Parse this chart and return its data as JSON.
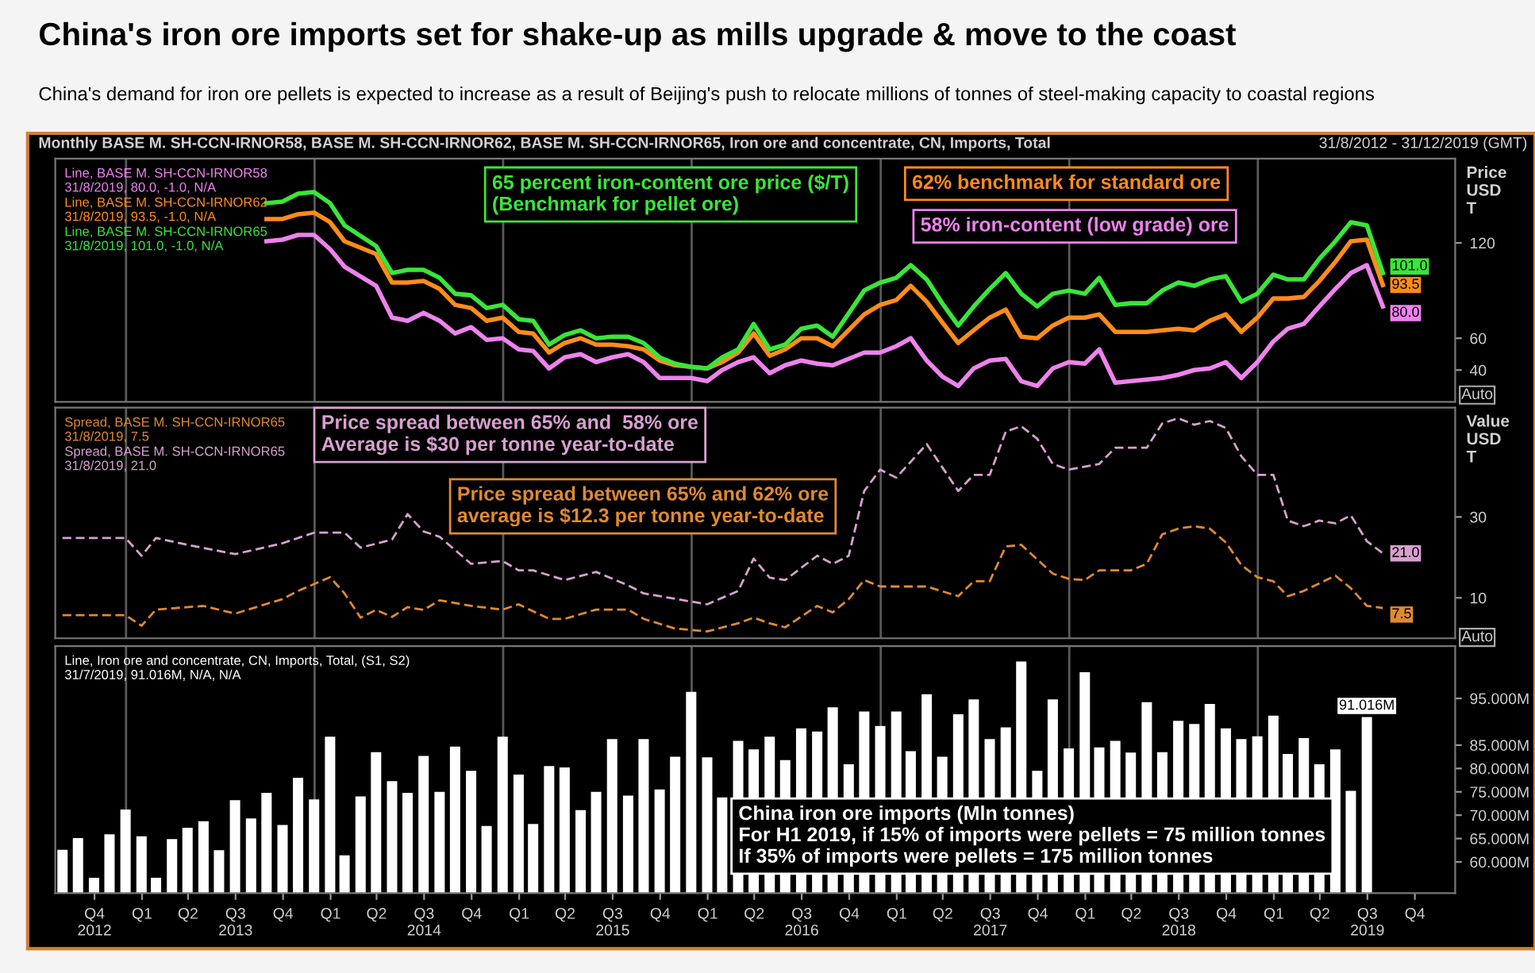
{
  "chart_data": [
    {
      "type": "line",
      "title": "China's iron ore imports set for shake-up as mills upgrade & move to the coast",
      "subtitle": "China's demand for iron ore pellets is expected to increase as a result of Beijing's push to relocate millions of tonnes of steel-making capacity to coastal regions",
      "ylabel": "Price\nUSD\nT",
      "legend": "top left",
      "tick_labels": "y",
      "line_style": "solid",
      "xlim": [
        "2012-08-17",
        "2020-01-18"
      ],
      "ylim": [
        20,
        173
      ],
      "yticks": [
        40,
        60,
        120
      ],
      "x": [
        "2013-09-30",
        "2013-10-31",
        "2013-11-30",
        "2013-12-31",
        "2014-01-31",
        "2014-02-28",
        "2014-04-30",
        "2014-05-31",
        "2014-06-30",
        "2014-07-31",
        "2014-08-31",
        "2014-09-30",
        "2014-10-31",
        "2014-11-30",
        "2014-12-31",
        "2015-01-31",
        "2015-02-28",
        "2015-03-31",
        "2015-04-30",
        "2015-05-31",
        "2015-06-30",
        "2015-07-31",
        "2015-08-31",
        "2015-09-30",
        "2015-10-31",
        "2015-11-30",
        "2015-12-31",
        "2016-01-31",
        "2016-02-29",
        "2016-03-31",
        "2016-04-30",
        "2016-05-31",
        "2016-06-30",
        "2016-07-31",
        "2016-08-31",
        "2016-09-30",
        "2016-11-30",
        "2016-12-31",
        "2017-01-31",
        "2017-02-28",
        "2017-03-31",
        "2017-04-30",
        "2017-05-31",
        "2017-06-30",
        "2017-07-31",
        "2017-08-31",
        "2017-09-30",
        "2017-10-31",
        "2017-11-30",
        "2017-12-31",
        "2018-01-31",
        "2018-02-28",
        "2018-03-31",
        "2018-04-30",
        "2018-05-31",
        "2018-06-30",
        "2018-07-31",
        "2018-08-31",
        "2018-09-30",
        "2018-10-31",
        "2018-11-30",
        "2018-12-31",
        "2019-01-31",
        "2019-02-28",
        "2019-03-31",
        "2019-04-30",
        "2019-05-31",
        "2019-06-30",
        "2019-07-31",
        "2019-08-31"
      ],
      "series": [
        {
          "name": "Line, BASE M. SH-CCN-IRNOR58\n31/8/2019, 80.0, -1.0, N/A",
          "color": "#ee82ee",
          "values": [
            121,
            122,
            125,
            125,
            116,
            105,
            93,
            73,
            71,
            76,
            71,
            63,
            67,
            59,
            60,
            53,
            52,
            41,
            48,
            50,
            45,
            48,
            50,
            45,
            35,
            35,
            35,
            33,
            40,
            45,
            48,
            38,
            43,
            46,
            44,
            43,
            51,
            51,
            55,
            60,
            46,
            36,
            30,
            41,
            46,
            47,
            33,
            30,
            41,
            45,
            44,
            53,
            32,
            33,
            34,
            35,
            37,
            40,
            41,
            45,
            35,
            45,
            58,
            66,
            69,
            80,
            91,
            101,
            106,
            80
          ],
          "value_labels": [
            null,
            null,
            null,
            null,
            null,
            null,
            null,
            null,
            null,
            null,
            null,
            null,
            null,
            null,
            null,
            null,
            null,
            null,
            null,
            null,
            null,
            null,
            null,
            null,
            null,
            null,
            null,
            null,
            null,
            null,
            null,
            null,
            null,
            null,
            null,
            null,
            null,
            null,
            null,
            null,
            null,
            null,
            null,
            null,
            null,
            null,
            null,
            null,
            null,
            null,
            null,
            null,
            null,
            null,
            null,
            null,
            null,
            null,
            null,
            null,
            null,
            null,
            null,
            null,
            null,
            null,
            null,
            null,
            null,
            "80.0"
          ]
        },
        {
          "name": "Line, BASE M. SH-CCN-IRNOR62\n31/8/2019, 93.5, -1.0, N/A",
          "color": "#ff8c1a",
          "values": [
            135,
            135,
            138,
            139,
            133,
            121,
            113,
            95,
            95,
            96,
            91,
            81,
            79,
            71,
            73,
            64,
            63,
            51,
            57,
            60,
            56,
            56,
            55,
            53,
            46,
            43,
            42,
            41,
            45,
            51,
            63,
            49,
            53,
            60,
            60,
            55,
            75,
            81,
            84,
            93,
            83,
            70,
            57,
            65,
            73,
            78,
            61,
            60,
            68,
            73,
            73,
            75,
            64,
            64,
            64,
            65,
            66,
            65,
            71,
            75,
            64,
            73,
            85,
            85,
            86,
            96,
            108,
            121,
            122,
            93.5
          ],
          "value_labels": [
            null,
            null,
            null,
            null,
            null,
            null,
            null,
            null,
            null,
            null,
            null,
            null,
            null,
            null,
            null,
            null,
            null,
            null,
            null,
            null,
            null,
            null,
            null,
            null,
            null,
            null,
            null,
            null,
            null,
            null,
            null,
            null,
            null,
            null,
            null,
            null,
            null,
            null,
            null,
            null,
            null,
            null,
            null,
            null,
            null,
            null,
            null,
            null,
            null,
            null,
            null,
            null,
            null,
            null,
            null,
            null,
            null,
            null,
            null,
            null,
            null,
            null,
            null,
            null,
            null,
            null,
            null,
            null,
            null,
            "93.5"
          ]
        },
        {
          "name": "Line, BASE M. SH-CCN-IRNOR65\n31/8/2019, 101.0, -1.0, N/A",
          "color": "#39e639",
          "values": [
            145,
            146,
            151,
            152,
            145,
            131,
            118,
            101,
            103,
            103,
            98,
            88,
            87,
            79,
            81,
            72,
            71,
            56,
            62,
            65,
            60,
            61,
            61,
            57,
            48,
            44,
            42,
            41,
            48,
            53,
            69,
            53,
            56,
            66,
            68,
            61,
            90,
            95,
            98,
            106,
            97,
            82,
            68,
            80,
            91,
            101,
            88,
            80,
            88,
            90,
            88,
            98,
            81,
            82,
            82,
            90,
            95,
            93,
            97,
            99,
            83,
            88,
            100,
            97,
            97,
            110,
            121,
            133,
            131,
            101
          ],
          "value_labels": [
            null,
            null,
            null,
            null,
            null,
            null,
            null,
            null,
            null,
            null,
            null,
            null,
            null,
            null,
            null,
            null,
            null,
            null,
            null,
            null,
            null,
            null,
            null,
            null,
            null,
            null,
            null,
            null,
            null,
            null,
            null,
            null,
            null,
            null,
            null,
            null,
            null,
            null,
            null,
            null,
            null,
            null,
            null,
            null,
            null,
            null,
            null,
            null,
            null,
            null,
            null,
            null,
            null,
            null,
            null,
            null,
            null,
            null,
            null,
            null,
            null,
            null,
            null,
            null,
            null,
            null,
            null,
            null,
            null,
            "101.0"
          ]
        }
      ],
      "ref_lines": [
        {
          "axis": "x",
          "value": "2013-01-01",
          "color": "#5a5a5a"
        },
        {
          "axis": "x",
          "value": "2014-01-01",
          "color": "#5a5a5a"
        },
        {
          "axis": "x",
          "value": "2015-01-01",
          "color": "#5a5a5a"
        },
        {
          "axis": "x",
          "value": "2016-01-01",
          "color": "#5a5a5a"
        },
        {
          "axis": "x",
          "value": "2017-01-01",
          "color": "#5a5a5a"
        },
        {
          "axis": "x",
          "value": "2018-01-01",
          "color": "#5a5a5a"
        },
        {
          "axis": "x",
          "value": "2019-01-01",
          "color": "#5a5a5a"
        }
      ],
      "annotations": [
        "58% iron-content (low grade) ore",
        "62% benchmark for standard ore",
        "65 percent iron-content ore price ($/T)\n(Benchmark for pellet ore)",
        "Monthly BASE M. SH-CCN-IRNOR58, BASE M. SH-CCN-IRNOR62, BASE M. SH-CCN-IRNOR65, Iron ore and concentrate, CN, Imports, Total",
        "31/8/2012 - 31/12/2019 (GMT)",
        "Auto"
      ]
    },
    {
      "type": "line",
      "ylabel": "Value\nUSD\nT",
      "legend": "top left",
      "tick_labels": "y",
      "line_style": "dashed",
      "xlim": [
        "2012-08-17",
        "2020-01-18"
      ],
      "ylim": [
        0,
        57
      ],
      "yticks": [
        10,
        30
      ],
      "series": [
        {
          "name": "Spread, BASE M. SH-CCN-IRNOR65\n31/8/2019, 7.5",
          "color": "#e08a30",
          "x": [
            "2012-08-31",
            "2012-12-31",
            "2013-01-31",
            "2013-02-28",
            "2013-05-31",
            "2013-07-31",
            "2013-10-31",
            "2013-11-30",
            "2014-01-31",
            "2014-02-28",
            "2014-03-31",
            "2014-04-30",
            "2014-05-31",
            "2014-06-30",
            "2014-07-31",
            "2014-08-31",
            "2014-10-31",
            "2014-12-31",
            "2015-01-31",
            "2015-03-31",
            "2015-04-30",
            "2015-06-30",
            "2015-08-31",
            "2015-09-30",
            "2015-11-30",
            "2016-01-31",
            "2016-03-31",
            "2016-04-30",
            "2016-05-31",
            "2016-06-30",
            "2016-08-31",
            "2016-09-30",
            "2016-10-31",
            "2016-11-30",
            "2016-12-31",
            "2017-03-31",
            "2017-05-31",
            "2017-06-30",
            "2017-07-31",
            "2017-08-31",
            "2017-09-30",
            "2017-11-30",
            "2017-12-31",
            "2018-01-31",
            "2018-02-28",
            "2018-04-30",
            "2018-05-31",
            "2018-06-30",
            "2018-07-31",
            "2018-08-31",
            "2018-09-30",
            "2018-10-31",
            "2018-11-30",
            "2018-12-31",
            "2019-01-31",
            "2019-02-28",
            "2019-03-31",
            "2019-05-31",
            "2019-06-30",
            "2019-07-31",
            "2019-08-31"
          ],
          "values": [
            5.7,
            5.7,
            3.1,
            7.1,
            8.0,
            6.1,
            9.7,
            11.7,
            15.1,
            11.1,
            5.1,
            7.0,
            5.3,
            7.7,
            7.0,
            9.4,
            8.0,
            7.1,
            8.4,
            4.8,
            4.8,
            7.1,
            7.1,
            4.8,
            2.4,
            1.7,
            3.7,
            5.1,
            3.7,
            2.7,
            8.0,
            6.4,
            9.7,
            14.4,
            12.8,
            12.8,
            10.4,
            14.1,
            14.1,
            22.7,
            23.1,
            16.0,
            14.7,
            14.4,
            16.8,
            16.8,
            18.4,
            25.7,
            27.1,
            27.7,
            27.1,
            23.7,
            18.1,
            15.1,
            14.1,
            10.4,
            11.7,
            15.5,
            12.4,
            8.0,
            7.5
          ],
          "value_labels": [
            null,
            null,
            null,
            null,
            null,
            null,
            null,
            null,
            null,
            null,
            null,
            null,
            null,
            null,
            null,
            null,
            null,
            null,
            null,
            null,
            null,
            null,
            null,
            null,
            null,
            null,
            null,
            null,
            null,
            null,
            null,
            null,
            null,
            null,
            null,
            null,
            null,
            null,
            null,
            null,
            null,
            null,
            null,
            null,
            null,
            null,
            null,
            null,
            null,
            null,
            null,
            null,
            null,
            null,
            null,
            null,
            null,
            null,
            null,
            null,
            "7.5"
          ]
        },
        {
          "name": "Spread, BASE M. SH-CCN-IRNOR65\n31/8/2019, 21.0",
          "color": "#d8a0d0",
          "x": [
            "2012-08-31",
            "2012-12-31",
            "2013-01-31",
            "2013-02-28",
            "2013-04-30",
            "2013-07-31",
            "2013-10-31",
            "2013-12-31",
            "2014-02-28",
            "2014-03-31",
            "2014-05-31",
            "2014-06-30",
            "2014-07-31",
            "2014-08-31",
            "2014-10-31",
            "2014-12-31",
            "2015-01-31",
            "2015-02-28",
            "2015-04-30",
            "2015-06-30",
            "2015-08-31",
            "2015-09-30",
            "2016-01-31",
            "2016-03-31",
            "2016-04-30",
            "2016-05-31",
            "2016-06-30",
            "2016-08-31",
            "2016-09-30",
            "2016-10-31",
            "2016-11-30",
            "2016-12-31",
            "2017-01-31",
            "2017-03-31",
            "2017-05-31",
            "2017-06-30",
            "2017-07-31",
            "2017-08-31",
            "2017-09-30",
            "2017-10-31",
            "2017-11-30",
            "2017-12-31",
            "2018-02-28",
            "2018-03-31",
            "2018-05-31",
            "2018-06-30",
            "2018-07-31",
            "2018-08-31",
            "2018-09-30",
            "2018-10-31",
            "2018-11-30",
            "2018-12-31",
            "2019-01-31",
            "2019-02-28",
            "2019-03-31",
            "2019-04-30",
            "2019-05-31",
            "2019-06-30",
            "2019-07-31",
            "2019-08-31"
          ],
          "values": [
            24.8,
            24.8,
            20.4,
            24.8,
            23.1,
            20.8,
            23.5,
            26.1,
            26.1,
            22.4,
            24.4,
            30.7,
            26.4,
            25.1,
            18.4,
            19.1,
            16.8,
            16.8,
            14.4,
            16.4,
            13.1,
            11.1,
            8.4,
            11.7,
            19.7,
            15.0,
            14.4,
            20.4,
            18.4,
            20.4,
            36.4,
            41.7,
            39.7,
            48.0,
            36.4,
            40.4,
            40.4,
            51.1,
            52.4,
            49.3,
            43.1,
            41.7,
            43.1,
            47.1,
            47.1,
            53.1,
            54.4,
            52.8,
            53.7,
            52.0,
            45.0,
            40.4,
            40.4,
            29.1,
            27.7,
            29.1,
            28.4,
            30.4,
            24.0,
            21.0
          ],
          "value_labels": [
            null,
            null,
            null,
            null,
            null,
            null,
            null,
            null,
            null,
            null,
            null,
            null,
            null,
            null,
            null,
            null,
            null,
            null,
            null,
            null,
            null,
            null,
            null,
            null,
            null,
            null,
            null,
            null,
            null,
            null,
            null,
            null,
            null,
            null,
            null,
            null,
            null,
            null,
            null,
            null,
            null,
            null,
            null,
            null,
            null,
            null,
            null,
            null,
            null,
            null,
            null,
            null,
            null,
            null,
            null,
            null,
            null,
            null,
            null,
            "21.0"
          ]
        }
      ],
      "ref_lines": [
        {
          "axis": "x",
          "value": "2013-01-01",
          "color": "#5a5a5a"
        },
        {
          "axis": "x",
          "value": "2014-01-01",
          "color": "#5a5a5a"
        },
        {
          "axis": "x",
          "value": "2015-01-01",
          "color": "#5a5a5a"
        },
        {
          "axis": "x",
          "value": "2016-01-01",
          "color": "#5a5a5a"
        },
        {
          "axis": "x",
          "value": "2017-01-01",
          "color": "#5a5a5a"
        },
        {
          "axis": "x",
          "value": "2018-01-01",
          "color": "#5a5a5a"
        },
        {
          "axis": "x",
          "value": "2019-01-01",
          "color": "#5a5a5a"
        }
      ],
      "annotations": [
        "Price spread between 65% and 62% ore\naverage is $12.3 per tonne year-to-date",
        "Price spread between 65% and  58% ore\nAverage is $30 per tonne year-to-date",
        "Auto"
      ]
    },
    {
      "type": "bar",
      "legend": "top left",
      "xlim": [
        "2012-08-17",
        "2020-01-18"
      ],
      "ylim": [
        53.3,
        106.2
      ],
      "yticks": [
        {
          "value": 60,
          "label": "60.000M"
        },
        {
          "value": 65,
          "label": "65.000M"
        },
        {
          "value": 70,
          "label": "70.000M"
        },
        {
          "value": 75,
          "label": "75.000M"
        },
        {
          "value": 80,
          "label": "80.000M"
        },
        {
          "value": 85,
          "label": "85.000M"
        },
        {
          "value": 95,
          "label": "95.000M"
        }
      ],
      "xticks": [
        {
          "value": "2012-11-01",
          "label": "Q4\n2012"
        },
        {
          "value": "2013-02-01",
          "label": "Q1"
        },
        {
          "value": "2013-05-01",
          "label": "Q2"
        },
        {
          "value": "2013-08-01",
          "label": "Q3\n2013"
        },
        {
          "value": "2013-11-01",
          "label": "Q4"
        },
        {
          "value": "2014-02-01",
          "label": "Q1"
        },
        {
          "value": "2014-05-01",
          "label": "Q2"
        },
        {
          "value": "2014-08-01",
          "label": "Q3\n2014"
        },
        {
          "value": "2014-11-01",
          "label": "Q4"
        },
        {
          "value": "2015-02-01",
          "label": "Q1"
        },
        {
          "value": "2015-05-01",
          "label": "Q2"
        },
        {
          "value": "2015-08-01",
          "label": "Q3\n2015"
        },
        {
          "value": "2015-11-01",
          "label": "Q4"
        },
        {
          "value": "2016-02-01",
          "label": "Q1"
        },
        {
          "value": "2016-05-01",
          "label": "Q2"
        },
        {
          "value": "2016-08-01",
          "label": "Q3\n2016"
        },
        {
          "value": "2016-11-01",
          "label": "Q4"
        },
        {
          "value": "2017-02-01",
          "label": "Q1"
        },
        {
          "value": "2017-05-01",
          "label": "Q2"
        },
        {
          "value": "2017-08-01",
          "label": "Q3\n2017"
        },
        {
          "value": "2017-11-01",
          "label": "Q4"
        },
        {
          "value": "2018-02-01",
          "label": "Q1"
        },
        {
          "value": "2018-05-01",
          "label": "Q2"
        },
        {
          "value": "2018-08-01",
          "label": "Q3\n2018"
        },
        {
          "value": "2018-11-01",
          "label": "Q4"
        },
        {
          "value": "2019-02-01",
          "label": "Q1"
        },
        {
          "value": "2019-05-01",
          "label": "Q2"
        },
        {
          "value": "2019-08-01",
          "label": "Q3\n2019"
        },
        {
          "value": "2019-11-01",
          "label": "Q4"
        }
      ],
      "x": [
        "2012-08-31",
        "2012-09-30",
        "2012-10-31",
        "2012-11-30",
        "2012-12-31",
        "2013-01-31",
        "2013-02-28",
        "2013-03-31",
        "2013-04-30",
        "2013-05-31",
        "2013-06-30",
        "2013-07-31",
        "2013-08-31",
        "2013-09-30",
        "2013-10-31",
        "2013-11-30",
        "2013-12-31",
        "2014-01-31",
        "2014-02-28",
        "2014-03-31",
        "2014-04-30",
        "2014-05-31",
        "2014-06-30",
        "2014-07-31",
        "2014-08-31",
        "2014-09-30",
        "2014-10-31",
        "2014-11-30",
        "2014-12-31",
        "2015-01-31",
        "2015-02-28",
        "2015-03-31",
        "2015-04-30",
        "2015-05-31",
        "2015-06-30",
        "2015-07-31",
        "2015-08-31",
        "2015-09-30",
        "2015-10-31",
        "2015-11-30",
        "2015-12-31",
        "2016-01-31",
        "2016-02-29",
        "2016-03-31",
        "2016-04-30",
        "2016-05-31",
        "2016-06-30",
        "2016-07-31",
        "2016-08-31",
        "2016-09-30",
        "2016-10-31",
        "2016-11-30",
        "2016-12-31",
        "2017-01-31",
        "2017-02-28",
        "2017-03-31",
        "2017-04-30",
        "2017-05-31",
        "2017-06-30",
        "2017-07-31",
        "2017-08-31",
        "2017-09-30",
        "2017-10-31",
        "2017-11-30",
        "2017-12-31",
        "2018-01-31",
        "2018-02-28",
        "2018-03-31",
        "2018-04-30",
        "2018-05-31",
        "2018-06-30",
        "2018-07-31",
        "2018-08-31",
        "2018-09-30",
        "2018-10-31",
        "2018-11-30",
        "2018-12-31",
        "2019-01-31",
        "2019-02-28",
        "2019-03-31",
        "2019-04-30",
        "2019-05-31",
        "2019-06-30",
        "2019-07-31"
      ],
      "series": [
        {
          "name": "Line, Iron ore and concentrate, CN, Imports, Total, (S1, S2)\n31/7/2019, 91.016M, N/A, N/A",
          "color": "#ffffff",
          "values": [
            62.6,
            65.1,
            56.6,
            65.9,
            71.2,
            65.5,
            56.6,
            64.9,
            67.3,
            68.7,
            62.5,
            73.2,
            69.3,
            74.8,
            67.9,
            78.0,
            73.4,
            86.8,
            61.4,
            74.0,
            83.5,
            77.3,
            74.8,
            82.7,
            75.0,
            84.7,
            79.5,
            67.7,
            86.8,
            78.7,
            68.1,
            80.5,
            80.2,
            71.1,
            75.0,
            86.3,
            74.2,
            86.3,
            75.5,
            82.5,
            96.4,
            82.4,
            73.8,
            85.9,
            84.1,
            86.8,
            81.8,
            88.6,
            87.9,
            93.1,
            80.9,
            92.2,
            89.1,
            92.2,
            83.7,
            95.9,
            82.5,
            91.6,
            94.8,
            86.3,
            88.8,
            102.9,
            79.5,
            94.8,
            84.3,
            100.6,
            84.5,
            85.9,
            83.4,
            94.2,
            83.5,
            90.2,
            89.5,
            93.8,
            88.6,
            86.3,
            86.9,
            91.3,
            83.1,
            86.5,
            80.9,
            84.1,
            75.2,
            91.016
          ],
          "value_labels": [
            null,
            null,
            null,
            null,
            null,
            null,
            null,
            null,
            null,
            null,
            null,
            null,
            null,
            null,
            null,
            null,
            null,
            null,
            null,
            null,
            null,
            null,
            null,
            null,
            null,
            null,
            null,
            null,
            null,
            null,
            null,
            null,
            null,
            null,
            null,
            null,
            null,
            null,
            null,
            null,
            null,
            null,
            null,
            null,
            null,
            null,
            null,
            null,
            null,
            null,
            null,
            null,
            null,
            null,
            null,
            null,
            null,
            null,
            null,
            null,
            null,
            null,
            null,
            null,
            null,
            null,
            null,
            null,
            null,
            null,
            null,
            null,
            null,
            null,
            null,
            null,
            null,
            null,
            null,
            null,
            null,
            null,
            null,
            "91.016M"
          ]
        }
      ],
      "ref_lines": [
        {
          "axis": "x",
          "value": "2013-01-01",
          "color": "#5a5a5a"
        },
        {
          "axis": "x",
          "value": "2014-01-01",
          "color": "#5a5a5a"
        },
        {
          "axis": "x",
          "value": "2015-01-01",
          "color": "#5a5a5a"
        },
        {
          "axis": "x",
          "value": "2016-01-01",
          "color": "#5a5a5a"
        },
        {
          "axis": "x",
          "value": "2017-01-01",
          "color": "#5a5a5a"
        },
        {
          "axis": "x",
          "value": "2018-01-01",
          "color": "#5a5a5a"
        },
        {
          "axis": "x",
          "value": "2019-01-01",
          "color": "#5a5a5a"
        }
      ],
      "annotations": [
        "China iron ore imports (Mln tonnes)\nFor H1 2019, if 15% of imports were pellets = 75 million tonnes\nIf 35% of imports were pellets = 175 million tonnes"
      ]
    }
  ]
}
